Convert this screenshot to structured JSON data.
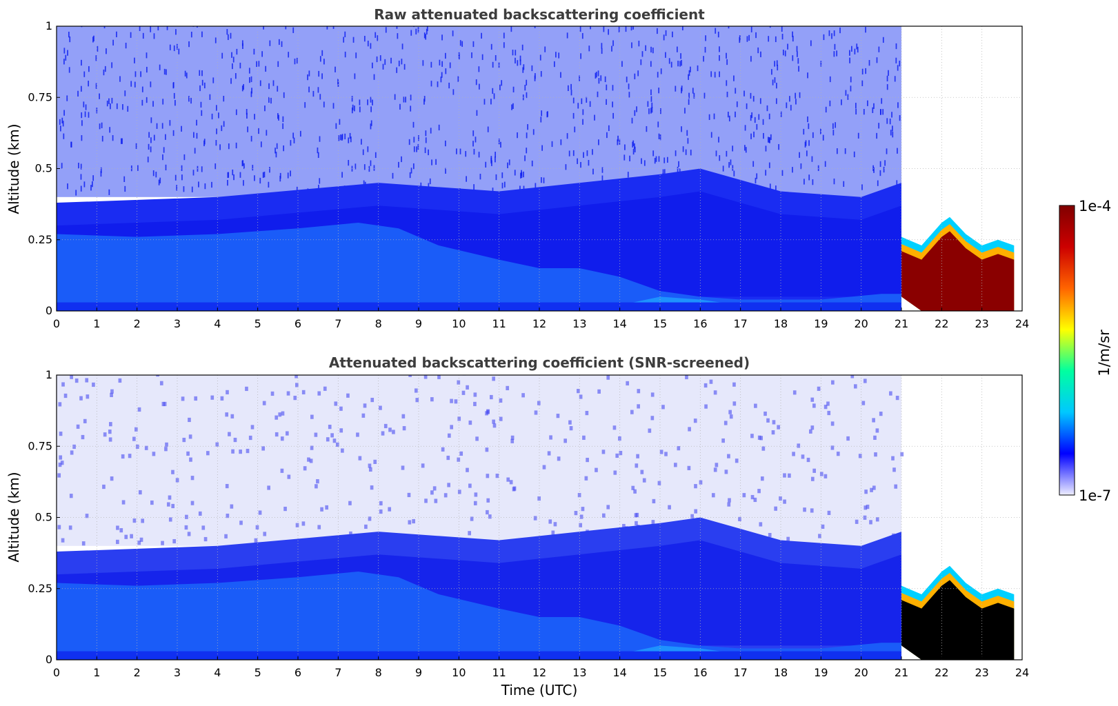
{
  "chart_data": [
    {
      "type": "heatmap",
      "title": "Raw attenuated backscattering coefficient",
      "xlabel": "",
      "ylabel": "Altitude (km)",
      "xlim": [
        0,
        24
      ],
      "ylim": [
        0,
        1
      ],
      "x_ticks": [
        "0",
        "1",
        "2",
        "3",
        "4",
        "5",
        "6",
        "7",
        "8",
        "9",
        "10",
        "11",
        "12",
        "13",
        "14",
        "15",
        "16",
        "17",
        "18",
        "19",
        "20",
        "21",
        "22",
        "23",
        "24"
      ],
      "y_ticks": [
        "0",
        "0.25",
        "0.5",
        "0.75",
        "1"
      ],
      "grid": true,
      "x_data_end": 23.8,
      "mixed_layer_top_km": [
        [
          0,
          0.27
        ],
        [
          2,
          0.26
        ],
        [
          4,
          0.27
        ],
        [
          6,
          0.29
        ],
        [
          7.5,
          0.31
        ],
        [
          8.5,
          0.29
        ],
        [
          9.5,
          0.23
        ],
        [
          11,
          0.18
        ],
        [
          12,
          0.15
        ],
        [
          13,
          0.15
        ],
        [
          14,
          0.12
        ],
        [
          15,
          0.07
        ],
        [
          16,
          0.05
        ],
        [
          17,
          0.04
        ],
        [
          19,
          0.04
        ],
        [
          20.5,
          0.06
        ],
        [
          21,
          0.06
        ]
      ],
      "blue_layer_top_km": [
        [
          0,
          0.38
        ],
        [
          4,
          0.4
        ],
        [
          8,
          0.45
        ],
        [
          11,
          0.42
        ],
        [
          15,
          0.48
        ],
        [
          16,
          0.5
        ],
        [
          18,
          0.42
        ],
        [
          20,
          0.4
        ],
        [
          21,
          0.45
        ]
      ],
      "cloud_top_km": [
        [
          21,
          0.25
        ],
        [
          21.5,
          0.22
        ],
        [
          22,
          0.3
        ],
        [
          22.2,
          0.32
        ],
        [
          22.6,
          0.26
        ],
        [
          23,
          0.22
        ],
        [
          23.4,
          0.24
        ],
        [
          23.8,
          0.22
        ]
      ],
      "cloud_base_km": [
        [
          21,
          0.05
        ],
        [
          21.5,
          0.0
        ],
        [
          22,
          0.0
        ],
        [
          23,
          0.0
        ],
        [
          23.8,
          0.0
        ]
      ]
    },
    {
      "type": "heatmap",
      "title": "Attenuated backscattering coefficient (SNR-screened)",
      "xlabel": "Time (UTC)",
      "ylabel": "Altitude (km)",
      "xlim": [
        0,
        24
      ],
      "ylim": [
        0,
        1
      ],
      "x_ticks": [
        "0",
        "1",
        "2",
        "3",
        "4",
        "5",
        "6",
        "7",
        "8",
        "9",
        "10",
        "11",
        "12",
        "13",
        "14",
        "15",
        "16",
        "17",
        "18",
        "19",
        "20",
        "21",
        "22",
        "23",
        "24"
      ],
      "y_ticks": [
        "0",
        "0.25",
        "0.5",
        "0.75",
        "1"
      ],
      "grid": true,
      "x_data_end": 23.8,
      "screened_cloud_core": "black",
      "mixed_layer_top_km": [
        [
          0,
          0.27
        ],
        [
          2,
          0.26
        ],
        [
          4,
          0.27
        ],
        [
          6,
          0.29
        ],
        [
          7.5,
          0.31
        ],
        [
          8.5,
          0.29
        ],
        [
          9.5,
          0.23
        ],
        [
          11,
          0.18
        ],
        [
          12,
          0.15
        ],
        [
          13,
          0.15
        ],
        [
          14,
          0.12
        ],
        [
          15,
          0.07
        ],
        [
          16,
          0.05
        ],
        [
          17,
          0.04
        ],
        [
          19,
          0.04
        ],
        [
          20.5,
          0.06
        ],
        [
          21,
          0.06
        ]
      ],
      "blue_layer_top_km": [
        [
          0,
          0.38
        ],
        [
          4,
          0.4
        ],
        [
          8,
          0.45
        ],
        [
          11,
          0.42
        ],
        [
          15,
          0.48
        ],
        [
          16,
          0.5
        ],
        [
          18,
          0.42
        ],
        [
          20,
          0.4
        ],
        [
          21,
          0.45
        ]
      ],
      "cloud_top_km": [
        [
          21,
          0.25
        ],
        [
          21.5,
          0.22
        ],
        [
          22,
          0.3
        ],
        [
          22.2,
          0.32
        ],
        [
          22.6,
          0.26
        ],
        [
          23,
          0.22
        ],
        [
          23.4,
          0.24
        ],
        [
          23.8,
          0.22
        ]
      ],
      "cloud_base_km": [
        [
          21,
          0.05
        ],
        [
          21.5,
          0.0
        ],
        [
          22,
          0.0
        ],
        [
          23,
          0.0
        ],
        [
          23.8,
          0.0
        ]
      ]
    }
  ],
  "colorbar": {
    "label": "1/m/sr",
    "max_label": "1e-4",
    "min_label": "1e-7",
    "colors": [
      "#eeeeff",
      "#0000ff",
      "#00c8ff",
      "#00ffa0",
      "#ffff00",
      "#ff6400",
      "#cc0000",
      "#800000"
    ]
  }
}
